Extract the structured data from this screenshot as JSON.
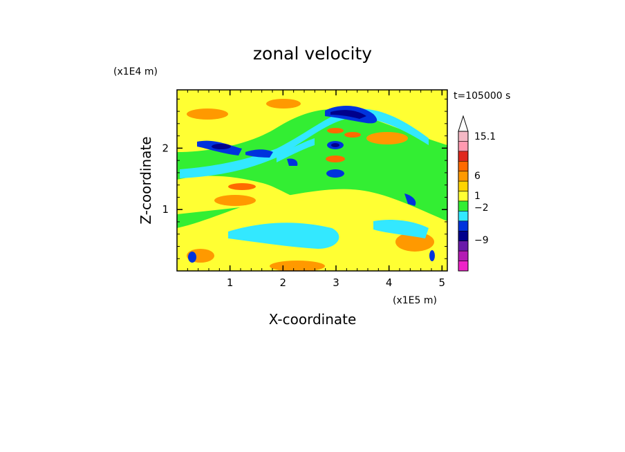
{
  "chart_data": {
    "type": "heatmap",
    "title": "zonal velocity",
    "time_label": "t=105000 s",
    "xlabel": "X-coordinate",
    "ylabel": "Z-coordinate",
    "x_unit": "(x1E5 m)",
    "y_unit": "(x1E4 m)",
    "xlim": [
      0,
      5.1
    ],
    "ylim": [
      0,
      2.95
    ],
    "x_ticks": [
      "1",
      "2",
      "3",
      "4",
      "5"
    ],
    "y_ticks": [
      "1",
      "2"
    ],
    "colorbar": {
      "labels": [
        "15.1",
        "6",
        "1",
        "-2",
        "-9"
      ],
      "colors": [
        "#ffffff",
        "#f4b8c4",
        "#ff99b0",
        "#e0281e",
        "#ff6a00",
        "#ff9900",
        "#ffd400",
        "#ffff33",
        "#33ee33",
        "#33e8ff",
        "#0033dd",
        "#00008c",
        "#6a1aaa",
        "#b41ab4",
        "#ee22c8"
      ]
    },
    "features": [
      {
        "kind": "dipole-band",
        "value": -9,
        "x": 3.1,
        "z": 2.55
      },
      {
        "kind": "dipole-band",
        "value": -9,
        "x": 3.6,
        "z": 2.45
      },
      {
        "kind": "dipole-band",
        "value": -9,
        "x": 1.0,
        "z": 2.0
      },
      {
        "kind": "dipole-band",
        "value": -9,
        "x": 0.6,
        "z": 2.1
      },
      {
        "kind": "dipole-band",
        "value": -9,
        "x": 1.6,
        "z": 1.95
      },
      {
        "kind": "dipole-band",
        "value": -9,
        "x": 2.98,
        "z": 2.1
      },
      {
        "kind": "dipole-band",
        "value": -9,
        "x": 2.98,
        "z": 1.6
      },
      {
        "kind": "dipole-band",
        "value": 6,
        "x": 2.98,
        "z": 1.85
      },
      {
        "kind": "dipole-band",
        "value": 6,
        "x": 2.98,
        "z": 2.33
      },
      {
        "kind": "dipole-band",
        "value": -2,
        "x": 2.2,
        "z": 0.75
      },
      {
        "kind": "dipole-band",
        "value": -2,
        "x": 4.0,
        "z": 0.8
      }
    ]
  }
}
